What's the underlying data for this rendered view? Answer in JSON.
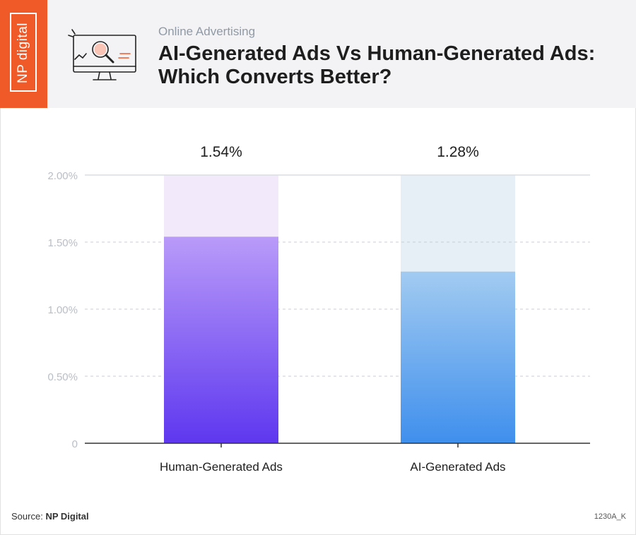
{
  "header": {
    "logo_text": "NP digital",
    "subtitle": "Online Advertising",
    "title_line1": "AI-Generated Ads Vs Human-Generated Ads:",
    "title_line2": "Which Converts Better?",
    "icon": "monitor-magnifier-icon"
  },
  "chart_data": {
    "type": "bar",
    "categories": [
      "Human-Generated Ads",
      "AI-Generated Ads"
    ],
    "values": [
      1.54,
      1.28
    ],
    "value_labels": [
      "1.54%",
      "1.28%"
    ],
    "y_ticks": [
      0,
      0.5,
      1.0,
      1.5,
      2.0
    ],
    "y_tick_labels": [
      "0",
      "0.50%",
      "1.00%",
      "1.50%",
      "2.00%"
    ],
    "ylim": [
      0,
      2.0
    ],
    "grid": true,
    "colors": {
      "human_top": "#b99bf9",
      "human_bottom": "#5e37ef",
      "human_track": "#f2eafb",
      "ai_top": "#a2cbf1",
      "ai_bottom": "#3f8fed",
      "ai_track": "#e6eef6"
    }
  },
  "footer": {
    "source_label": "Source:",
    "source_value": "NP Digital",
    "code": "1230A_K"
  }
}
